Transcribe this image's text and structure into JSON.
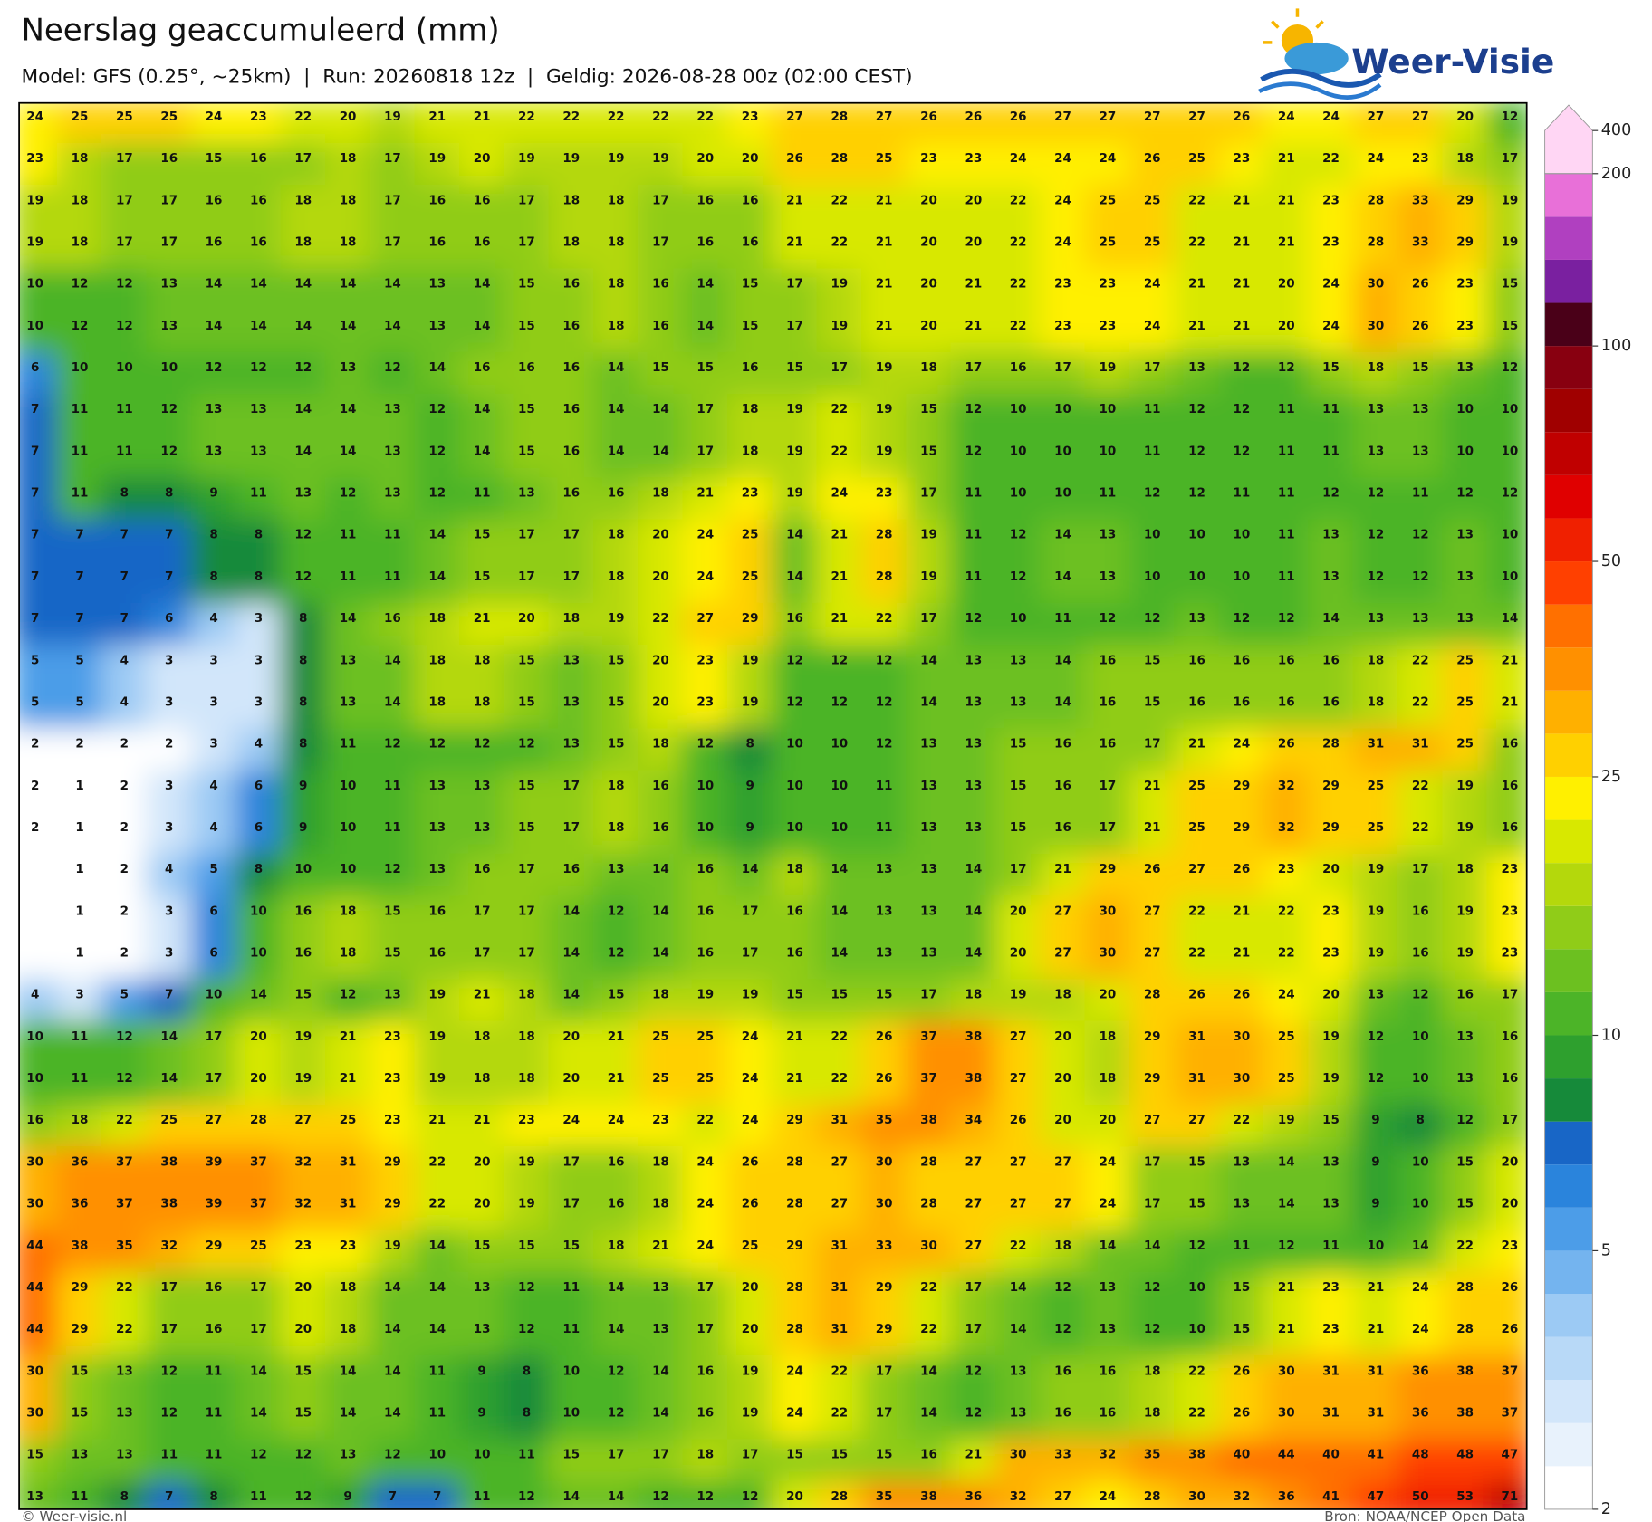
{
  "header": {
    "title": "Neerslag geaccumuleerd (mm)",
    "subtitle": "Model: GFS (0.25°, ~25km)  |  Run: 20260818 12z  |  Geldig: 2026-08-28 00z (02:00 CEST)"
  },
  "logo": {
    "text": "Weer-Visie"
  },
  "grid": {
    "values": [
      [
        24,
        25,
        25,
        25,
        24,
        23,
        22,
        20,
        19,
        21,
        21,
        22,
        22,
        22,
        22,
        22,
        23,
        27,
        28,
        27,
        26,
        26,
        26,
        27,
        27,
        27,
        27,
        26,
        24,
        24,
        27,
        27,
        20,
        12
      ],
      [
        23,
        18,
        17,
        16,
        15,
        16,
        17,
        18,
        17,
        19,
        20,
        19,
        19,
        19,
        19,
        20,
        20,
        26,
        28,
        25,
        23,
        23,
        24,
        24,
        24,
        26,
        25,
        23,
        21,
        22,
        24,
        23,
        18,
        17
      ],
      [
        19,
        18,
        17,
        17,
        16,
        16,
        18,
        18,
        17,
        16,
        16,
        17,
        18,
        18,
        17,
        16,
        16,
        21,
        22,
        21,
        20,
        20,
        22,
        24,
        25,
        25,
        22,
        21,
        21,
        23,
        28,
        33,
        29,
        19
      ],
      [
        19,
        18,
        17,
        17,
        16,
        16,
        18,
        18,
        17,
        16,
        16,
        17,
        18,
        18,
        17,
        16,
        16,
        21,
        22,
        21,
        20,
        20,
        22,
        24,
        25,
        25,
        22,
        21,
        21,
        23,
        28,
        33,
        29,
        19
      ],
      [
        10,
        12,
        12,
        13,
        14,
        14,
        14,
        14,
        14,
        13,
        14,
        15,
        16,
        18,
        16,
        14,
        15,
        17,
        19,
        21,
        20,
        21,
        22,
        23,
        23,
        24,
        21,
        21,
        20,
        24,
        30,
        26,
        23,
        15
      ],
      [
        10,
        12,
        12,
        13,
        14,
        14,
        14,
        14,
        14,
        13,
        14,
        15,
        16,
        18,
        16,
        14,
        15,
        17,
        19,
        21,
        20,
        21,
        22,
        23,
        23,
        24,
        21,
        21,
        20,
        24,
        30,
        26,
        23,
        15
      ],
      [
        6,
        10,
        10,
        10,
        12,
        12,
        12,
        13,
        12,
        14,
        16,
        16,
        16,
        14,
        15,
        15,
        16,
        15,
        17,
        19,
        18,
        17,
        16,
        17,
        19,
        17,
        13,
        12,
        12,
        15,
        18,
        15,
        13,
        12
      ],
      [
        7,
        11,
        11,
        12,
        13,
        13,
        14,
        14,
        13,
        12,
        14,
        15,
        16,
        14,
        14,
        17,
        18,
        19,
        22,
        19,
        15,
        12,
        10,
        10,
        10,
        11,
        12,
        12,
        11,
        11,
        13,
        13,
        10,
        10
      ],
      [
        7,
        11,
        11,
        12,
        13,
        13,
        14,
        14,
        13,
        12,
        14,
        15,
        16,
        14,
        14,
        17,
        18,
        19,
        22,
        19,
        15,
        12,
        10,
        10,
        10,
        11,
        12,
        12,
        11,
        11,
        13,
        13,
        10,
        10
      ],
      [
        7,
        11,
        8,
        8,
        9,
        11,
        13,
        12,
        13,
        12,
        11,
        13,
        16,
        16,
        18,
        21,
        23,
        19,
        24,
        23,
        17,
        11,
        10,
        10,
        11,
        12,
        12,
        11,
        11,
        12,
        12,
        11,
        12,
        12
      ],
      [
        7,
        7,
        7,
        7,
        8,
        8,
        12,
        11,
        11,
        14,
        15,
        17,
        17,
        18,
        20,
        24,
        25,
        14,
        21,
        28,
        19,
        11,
        12,
        14,
        13,
        10,
        10,
        10,
        11,
        13,
        12,
        12,
        13,
        10
      ],
      [
        7,
        7,
        7,
        7,
        8,
        8,
        12,
        11,
        11,
        14,
        15,
        17,
        17,
        18,
        20,
        24,
        25,
        14,
        21,
        28,
        19,
        11,
        12,
        14,
        13,
        10,
        10,
        10,
        11,
        13,
        12,
        12,
        13,
        10
      ],
      [
        7,
        7,
        7,
        6,
        4,
        3,
        8,
        14,
        16,
        18,
        21,
        20,
        18,
        19,
        22,
        27,
        29,
        16,
        21,
        22,
        17,
        12,
        10,
        11,
        12,
        12,
        13,
        12,
        12,
        14,
        13,
        13,
        13,
        14
      ],
      [
        5,
        5,
        4,
        3,
        3,
        3,
        8,
        13,
        14,
        18,
        18,
        15,
        13,
        15,
        20,
        23,
        19,
        12,
        12,
        12,
        14,
        13,
        13,
        14,
        16,
        15,
        16,
        16,
        16,
        16,
        18,
        22,
        25,
        21
      ],
      [
        5,
        5,
        4,
        3,
        3,
        3,
        8,
        13,
        14,
        18,
        18,
        15,
        13,
        15,
        20,
        23,
        19,
        12,
        12,
        12,
        14,
        13,
        13,
        14,
        16,
        15,
        16,
        16,
        16,
        16,
        18,
        22,
        25,
        21
      ],
      [
        2,
        2,
        2,
        2,
        3,
        4,
        8,
        11,
        12,
        12,
        12,
        12,
        13,
        15,
        18,
        12,
        8,
        10,
        10,
        12,
        13,
        13,
        15,
        16,
        16,
        17,
        21,
        24,
        26,
        28,
        31,
        31,
        25,
        16
      ],
      [
        2,
        1,
        2,
        3,
        4,
        6,
        9,
        10,
        11,
        13,
        13,
        15,
        17,
        18,
        16,
        10,
        9,
        10,
        10,
        11,
        13,
        13,
        15,
        16,
        17,
        21,
        25,
        29,
        32,
        29,
        25,
        22,
        19,
        16
      ],
      [
        2,
        1,
        2,
        3,
        4,
        6,
        9,
        10,
        11,
        13,
        13,
        15,
        17,
        18,
        16,
        10,
        9,
        10,
        10,
        11,
        13,
        13,
        15,
        16,
        17,
        21,
        25,
        29,
        32,
        29,
        25,
        22,
        19,
        16
      ],
      [
        null,
        1,
        2,
        4,
        5,
        8,
        10,
        10,
        12,
        13,
        16,
        17,
        16,
        13,
        14,
        16,
        14,
        18,
        14,
        13,
        13,
        14,
        17,
        21,
        29,
        26,
        27,
        26,
        23,
        20,
        19,
        17,
        18,
        23
      ],
      [
        null,
        1,
        2,
        3,
        6,
        10,
        16,
        18,
        15,
        16,
        17,
        17,
        14,
        12,
        14,
        16,
        17,
        16,
        14,
        13,
        13,
        14,
        20,
        27,
        30,
        27,
        22,
        21,
        22,
        23,
        19,
        16,
        19,
        23
      ],
      [
        null,
        1,
        2,
        3,
        6,
        10,
        16,
        18,
        15,
        16,
        17,
        17,
        14,
        12,
        14,
        16,
        17,
        16,
        14,
        13,
        13,
        14,
        20,
        27,
        30,
        27,
        22,
        21,
        22,
        23,
        19,
        16,
        19,
        23
      ],
      [
        4,
        3,
        5,
        7,
        10,
        14,
        15,
        12,
        13,
        19,
        21,
        18,
        14,
        15,
        18,
        19,
        19,
        15,
        15,
        15,
        17,
        18,
        19,
        18,
        20,
        28,
        26,
        26,
        24,
        20,
        13,
        12,
        16,
        17
      ],
      [
        10,
        11,
        12,
        14,
        17,
        20,
        19,
        21,
        23,
        19,
        18,
        18,
        20,
        21,
        25,
        25,
        24,
        21,
        22,
        26,
        37,
        38,
        27,
        20,
        18,
        29,
        31,
        30,
        25,
        19,
        12,
        10,
        13,
        16
      ],
      [
        10,
        11,
        12,
        14,
        17,
        20,
        19,
        21,
        23,
        19,
        18,
        18,
        20,
        21,
        25,
        25,
        24,
        21,
        22,
        26,
        37,
        38,
        27,
        20,
        18,
        29,
        31,
        30,
        25,
        19,
        12,
        10,
        13,
        16
      ],
      [
        16,
        18,
        22,
        25,
        27,
        28,
        27,
        25,
        23,
        21,
        21,
        23,
        24,
        24,
        23,
        22,
        24,
        29,
        31,
        35,
        38,
        34,
        26,
        20,
        20,
        27,
        27,
        22,
        19,
        15,
        9,
        8,
        12,
        17
      ],
      [
        30,
        36,
        37,
        38,
        39,
        37,
        32,
        31,
        29,
        22,
        20,
        19,
        17,
        16,
        18,
        24,
        26,
        28,
        27,
        30,
        28,
        27,
        27,
        27,
        24,
        17,
        15,
        13,
        14,
        13,
        9,
        10,
        15,
        20
      ],
      [
        30,
        36,
        37,
        38,
        39,
        37,
        32,
        31,
        29,
        22,
        20,
        19,
        17,
        16,
        18,
        24,
        26,
        28,
        27,
        30,
        28,
        27,
        27,
        27,
        24,
        17,
        15,
        13,
        14,
        13,
        9,
        10,
        15,
        20
      ],
      [
        44,
        38,
        35,
        32,
        29,
        25,
        23,
        23,
        19,
        14,
        15,
        15,
        15,
        18,
        21,
        24,
        25,
        29,
        31,
        33,
        30,
        27,
        22,
        18,
        14,
        14,
        12,
        11,
        12,
        11,
        10,
        14,
        22,
        23
      ],
      [
        44,
        29,
        22,
        17,
        16,
        17,
        20,
        18,
        14,
        14,
        13,
        12,
        11,
        14,
        13,
        17,
        20,
        28,
        31,
        29,
        22,
        17,
        14,
        12,
        13,
        12,
        10,
        15,
        21,
        23,
        21,
        24,
        28,
        26
      ],
      [
        44,
        29,
        22,
        17,
        16,
        17,
        20,
        18,
        14,
        14,
        13,
        12,
        11,
        14,
        13,
        17,
        20,
        28,
        31,
        29,
        22,
        17,
        14,
        12,
        13,
        12,
        10,
        15,
        21,
        23,
        21,
        24,
        28,
        26
      ],
      [
        30,
        15,
        13,
        12,
        11,
        14,
        15,
        14,
        14,
        11,
        9,
        8,
        10,
        12,
        14,
        16,
        19,
        24,
        22,
        17,
        14,
        12,
        13,
        16,
        16,
        18,
        22,
        26,
        30,
        31,
        31,
        36,
        38,
        37
      ],
      [
        30,
        15,
        13,
        12,
        11,
        14,
        15,
        14,
        14,
        11,
        9,
        8,
        10,
        12,
        14,
        16,
        19,
        24,
        22,
        17,
        14,
        12,
        13,
        16,
        16,
        18,
        22,
        26,
        30,
        31,
        31,
        36,
        38,
        37
      ],
      [
        15,
        13,
        13,
        11,
        11,
        12,
        12,
        13,
        12,
        10,
        10,
        11,
        15,
        17,
        17,
        18,
        17,
        15,
        15,
        15,
        16,
        21,
        30,
        33,
        32,
        35,
        38,
        40,
        44,
        40,
        41,
        48,
        48,
        47
      ],
      [
        13,
        11,
        8,
        7,
        8,
        11,
        12,
        9,
        7,
        7,
        11,
        12,
        14,
        14,
        12,
        12,
        12,
        20,
        28,
        35,
        38,
        36,
        32,
        27,
        24,
        28,
        30,
        32,
        36,
        41,
        47,
        50,
        53,
        71
      ]
    ]
  },
  "colorbar": {
    "levels": [
      2,
      2.5,
      3,
      3.5,
      4,
      4.5,
      5,
      6,
      7,
      8,
      9,
      10,
      12.5,
      15,
      17.5,
      20,
      22.5,
      25,
      30,
      35,
      40,
      45,
      50,
      60,
      70,
      80,
      90,
      100,
      125,
      150,
      175,
      200,
      400
    ],
    "colors": [
      "#ffffff",
      "#e8f2fc",
      "#d2e6fa",
      "#b8d9f7",
      "#9ccaf4",
      "#74b4ef",
      "#4c9de8",
      "#2a84dc",
      "#1866c6",
      "#168a3a",
      "#2ea02e",
      "#4cb428",
      "#6cc020",
      "#90cc18",
      "#b4d80c",
      "#d8e800",
      "#fff000",
      "#ffd000",
      "#ffb000",
      "#ff9000",
      "#ff7000",
      "#ff4000",
      "#f02000",
      "#e00000",
      "#c00000",
      "#a00000",
      "#880010",
      "#4a0018",
      "#7a20a0",
      "#b040c0",
      "#e870d8",
      "#ffd6f4"
    ],
    "ticks": [
      2,
      5,
      10,
      25,
      50,
      100,
      200,
      400
    ]
  },
  "footer": {
    "left": "© Weer-visie.nl",
    "right": "Bron: NOAA/NCEP Open Data"
  }
}
